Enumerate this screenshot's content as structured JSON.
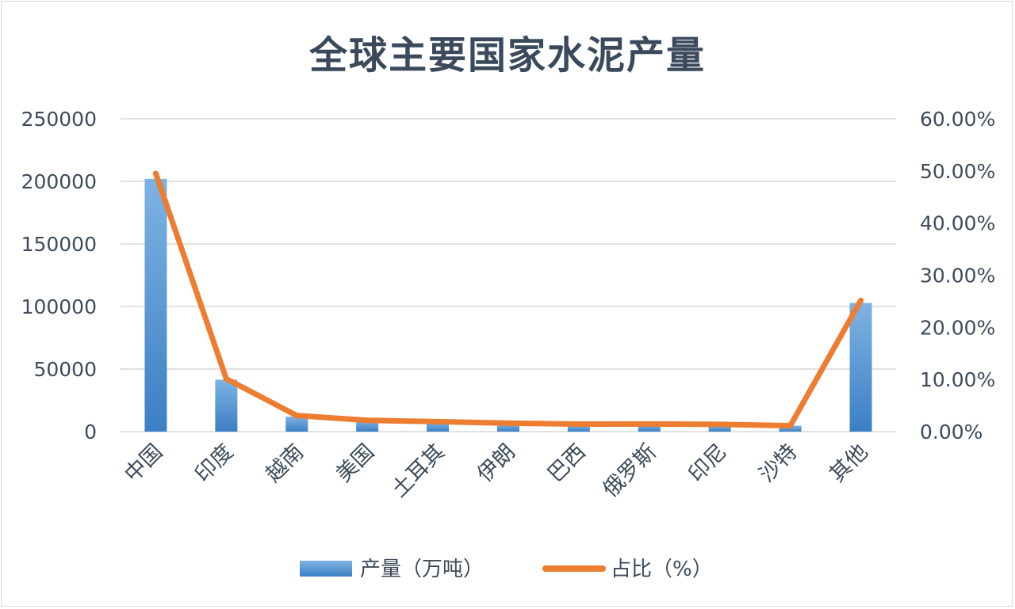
{
  "chart_data": {
    "type": "bar",
    "title": "全球主要国家水泥产量",
    "categories": [
      "中国",
      "印度",
      "越南",
      "美国",
      "土耳其",
      "伊朗",
      "巴西",
      "俄罗斯",
      "印尼",
      "沙特",
      "其他"
    ],
    "series": [
      {
        "name": "产量（万吨）",
        "type": "bar",
        "axis": "left",
        "color": "#5b9bd5",
        "values": [
          202000,
          41500,
          12000,
          8900,
          7200,
          6000,
          5300,
          5500,
          5000,
          4700,
          102800
        ]
      },
      {
        "name": "占比（%）",
        "type": "line",
        "axis": "right",
        "color": "#ed7d31",
        "values": [
          0.495,
          0.1013,
          0.0308,
          0.0217,
          0.0191,
          0.0161,
          0.0144,
          0.0146,
          0.0138,
          0.0114,
          0.2516
        ]
      }
    ],
    "y_left": {
      "min": 0,
      "max": 250000,
      "ticks": [
        "250000",
        "200000",
        "150000",
        "100000",
        "50000",
        "0"
      ]
    },
    "y_right": {
      "min": 0,
      "max": 0.6,
      "ticks": [
        "60.00%",
        "50.00%",
        "40.00%",
        "30.00%",
        "20.00%",
        "10.00%",
        "0.00%"
      ]
    },
    "grid": true,
    "legend_position": "bottom"
  }
}
